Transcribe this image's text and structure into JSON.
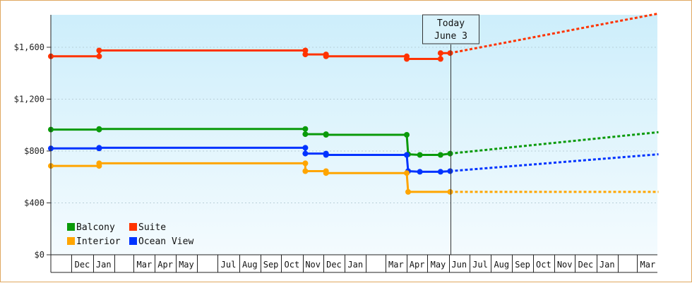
{
  "chart_data": {
    "type": "line",
    "title": "",
    "xlabel": "",
    "ylabel": "",
    "ylim": [
      0,
      1850
    ],
    "y_ticks": [
      0,
      400,
      800,
      1200,
      1600
    ],
    "y_tick_labels": [
      "$0",
      "$400",
      "$800",
      "$1,200",
      "$1,600"
    ],
    "x_axis": {
      "start": "2016-11-01",
      "end": "2018-04-01",
      "labeled_months": [
        {
          "date": "2016-12-01",
          "label": "Dec"
        },
        {
          "date": "2017-01-01",
          "label": "Jan"
        },
        {
          "date": "2017-03-01",
          "label": "Mar"
        },
        {
          "date": "2017-04-01",
          "label": "Apr"
        },
        {
          "date": "2017-05-01",
          "label": "May"
        },
        {
          "date": "2017-07-01",
          "label": "Jul"
        },
        {
          "date": "2017-08-01",
          "label": "Aug"
        },
        {
          "date": "2017-09-01",
          "label": "Sep"
        },
        {
          "date": "2017-10-01",
          "label": "Oct"
        },
        {
          "date": "2017-11-01",
          "label": "Nov"
        },
        {
          "date": "2017-12-01",
          "label": "Dec"
        },
        {
          "date": "2018-01-01",
          "label": "Jan"
        },
        {
          "date": "2018-03-01",
          "label": "Mar"
        },
        {
          "date": "2018-04-01",
          "label": "Apr"
        },
        {
          "date": "2018-05-01",
          "label": "May"
        },
        {
          "date": "2018-06-01",
          "label": "Jun"
        },
        {
          "date": "2018-07-01",
          "label": "Jul"
        },
        {
          "date": "2018-08-01",
          "label": "Aug"
        },
        {
          "date": "2018-09-01",
          "label": "Sep"
        },
        {
          "date": "2018-10-01",
          "label": "Oct"
        },
        {
          "date": "2018-11-01",
          "label": "Nov"
        },
        {
          "date": "2018-12-01",
          "label": "Dec"
        },
        {
          "date": "2019-01-01",
          "label": "Jan"
        },
        {
          "date": "2019-03-01",
          "label": "Mar"
        }
      ],
      "tick_months": [
        "2016-11-01",
        "2016-12-01",
        "2017-01-01",
        "2017-02-01",
        "2017-03-01",
        "2017-04-01",
        "2017-05-01",
        "2017-06-01",
        "2017-07-01",
        "2017-08-01",
        "2017-09-01",
        "2017-10-01",
        "2017-11-01",
        "2017-12-01",
        "2018-01-01",
        "2018-02-01",
        "2018-03-01",
        "2018-04-01",
        "2018-05-01",
        "2018-06-01",
        "2018-07-01",
        "2018-08-01",
        "2018-09-01",
        "2018-10-01",
        "2018-11-01",
        "2018-12-01",
        "2019-01-01",
        "2019-02-01",
        "2019-03-01",
        "2019-04-01"
      ]
    },
    "today": {
      "label_line1": "Today",
      "label_line2": "June 3",
      "date": "2018-06-03"
    },
    "legend": {
      "placement": "bottom-left",
      "items": [
        {
          "name": "Balcony",
          "color": "#0a9a0a"
        },
        {
          "name": "Suite",
          "color": "#ff3300"
        },
        {
          "name": "Interior",
          "color": "#ffa500"
        },
        {
          "name": "Ocean View",
          "color": "#0033ff"
        }
      ]
    },
    "series": [
      {
        "name": "Suite",
        "color": "#ff3300",
        "points": [
          {
            "date": "2016-11-01",
            "value": 1530
          },
          {
            "date": "2017-01-10",
            "value": 1530
          },
          {
            "date": "2017-01-10",
            "value": 1575
          },
          {
            "date": "2017-11-05",
            "value": 1575
          },
          {
            "date": "2017-11-05",
            "value": 1545
          },
          {
            "date": "2017-12-05",
            "value": 1545
          },
          {
            "date": "2017-12-05",
            "value": 1530
          },
          {
            "date": "2018-04-01",
            "value": 1530
          },
          {
            "date": "2018-04-01",
            "value": 1510
          },
          {
            "date": "2018-05-20",
            "value": 1510
          },
          {
            "date": "2018-05-20",
            "value": 1555
          },
          {
            "date": "2018-06-03",
            "value": 1555
          }
        ],
        "forecast": [
          {
            "date": "2018-06-03",
            "value": 1555
          },
          {
            "date": "2019-04-01",
            "value": 1860
          }
        ]
      },
      {
        "name": "Balcony",
        "color": "#0a9a0a",
        "points": [
          {
            "date": "2016-11-01",
            "value": 965
          },
          {
            "date": "2017-01-10",
            "value": 965
          },
          {
            "date": "2017-01-10",
            "value": 970
          },
          {
            "date": "2017-11-05",
            "value": 970
          },
          {
            "date": "2017-11-05",
            "value": 930
          },
          {
            "date": "2017-12-05",
            "value": 930
          },
          {
            "date": "2017-12-05",
            "value": 925
          },
          {
            "date": "2018-04-01",
            "value": 925
          },
          {
            "date": "2018-04-03",
            "value": 775
          },
          {
            "date": "2018-04-20",
            "value": 770
          },
          {
            "date": "2018-05-20",
            "value": 770
          },
          {
            "date": "2018-06-03",
            "value": 780
          }
        ],
        "forecast": [
          {
            "date": "2018-06-03",
            "value": 780
          },
          {
            "date": "2019-04-01",
            "value": 945
          }
        ]
      },
      {
        "name": "Ocean View",
        "color": "#0033ff",
        "points": [
          {
            "date": "2016-11-01",
            "value": 820
          },
          {
            "date": "2017-01-10",
            "value": 820
          },
          {
            "date": "2017-01-10",
            "value": 825
          },
          {
            "date": "2017-11-05",
            "value": 825
          },
          {
            "date": "2017-11-05",
            "value": 780
          },
          {
            "date": "2017-12-05",
            "value": 780
          },
          {
            "date": "2017-12-05",
            "value": 770
          },
          {
            "date": "2018-04-01",
            "value": 770
          },
          {
            "date": "2018-04-03",
            "value": 645
          },
          {
            "date": "2018-04-20",
            "value": 640
          },
          {
            "date": "2018-05-20",
            "value": 640
          },
          {
            "date": "2018-06-03",
            "value": 645
          }
        ],
        "forecast": [
          {
            "date": "2018-06-03",
            "value": 645
          },
          {
            "date": "2019-04-01",
            "value": 775
          }
        ]
      },
      {
        "name": "Interior",
        "color": "#ffa500",
        "points": [
          {
            "date": "2016-11-01",
            "value": 685
          },
          {
            "date": "2017-01-10",
            "value": 685
          },
          {
            "date": "2017-01-10",
            "value": 705
          },
          {
            "date": "2017-11-05",
            "value": 705
          },
          {
            "date": "2017-11-05",
            "value": 645
          },
          {
            "date": "2017-12-05",
            "value": 645
          },
          {
            "date": "2017-12-05",
            "value": 630
          },
          {
            "date": "2018-04-01",
            "value": 630
          },
          {
            "date": "2018-04-03",
            "value": 485
          },
          {
            "date": "2018-06-03",
            "value": 485
          }
        ],
        "forecast": [
          {
            "date": "2018-06-03",
            "value": 485
          },
          {
            "date": "2019-04-01",
            "value": 485
          }
        ]
      }
    ]
  }
}
